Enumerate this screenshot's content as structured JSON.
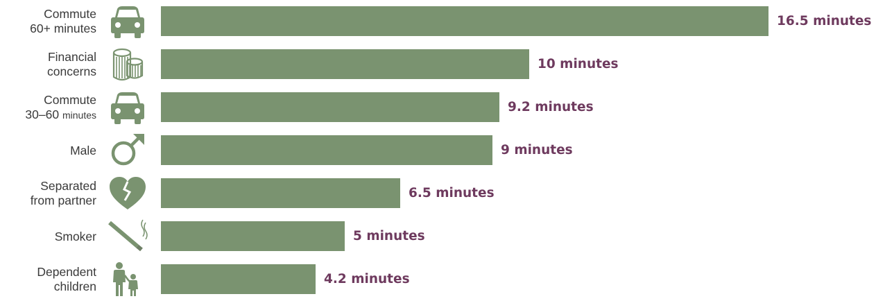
{
  "chart_data": {
    "type": "bar",
    "orientation": "horizontal",
    "bar_color": "#7a9370",
    "value_color": "#6e3a5e",
    "label_color": "#3a3a3a",
    "icon_color": "#7a9370",
    "xlim": [
      0,
      16.5
    ],
    "items": [
      {
        "label_line1": "Commute",
        "label_line2_main": "60+ minutes",
        "label_line2_small": "",
        "icon": "car-icon",
        "value": 16.5,
        "value_label": "16.5 minutes"
      },
      {
        "label_line1": "Financial",
        "label_line2_main": "concerns",
        "label_line2_small": "",
        "icon": "coins-icon",
        "value": 10,
        "value_label": "10 minutes"
      },
      {
        "label_line1": "Commute",
        "label_line2_main": "30–60",
        "label_line2_small": "minutes",
        "icon": "car-icon",
        "value": 9.2,
        "value_label": "9.2 minutes"
      },
      {
        "label_line1": "Male",
        "label_line2_main": "",
        "label_line2_small": "",
        "icon": "male-symbol-icon",
        "value": 9,
        "value_label": "9 minutes"
      },
      {
        "label_line1": "Separated",
        "label_line2_main": "from partner",
        "label_line2_small": "",
        "icon": "broken-heart-icon",
        "value": 6.5,
        "value_label": "6.5 minutes"
      },
      {
        "label_line1": "Smoker",
        "label_line2_main": "",
        "label_line2_small": "",
        "icon": "cigarette-icon",
        "value": 5,
        "value_label": "5 minutes"
      },
      {
        "label_line1": "Dependent",
        "label_line2_main": "children",
        "label_line2_small": "",
        "icon": "parent-child-icon",
        "value": 4.2,
        "value_label": "4.2 minutes"
      }
    ]
  }
}
